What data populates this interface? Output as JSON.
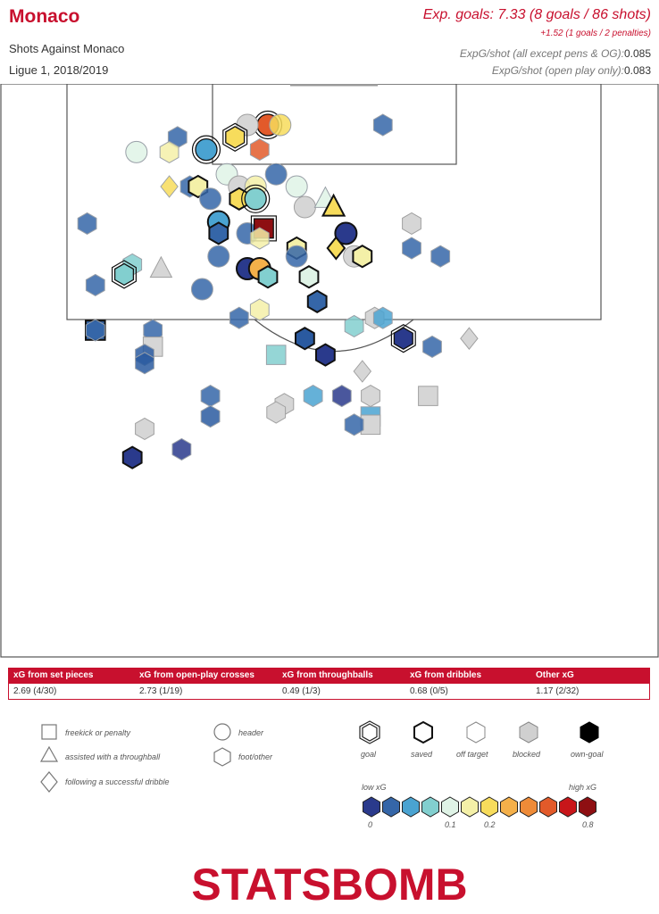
{
  "header": {
    "title": "Monaco",
    "subtitle": "Shots Against Monaco",
    "competition": "Ligue 1, 2018/2019",
    "xg_main": "Exp. goals: 7.33 (8 goals / 86 shots)",
    "xg_penalties": "+1.52 (1 goals / 2 penalties)",
    "rate1_label": "ExpG/shot (all except pens & OG):",
    "rate1_value": "0.085",
    "rate2_label": "ExpG/shot (open play only):",
    "rate2_value": "0.083"
  },
  "summary_table": {
    "columns": [
      {
        "header": "xG from set pieces",
        "value": "2.69 (4/30)"
      },
      {
        "header": "xG from open-play crosses",
        "value": "2.73 (1/19)"
      },
      {
        "header": "xG from throughballs",
        "value": "0.49 (1/3)"
      },
      {
        "header": "xG from dribbles",
        "value": "0.68 (0/5)"
      },
      {
        "header": "Other xG",
        "value": "1.17 (2/32)"
      }
    ]
  },
  "legend": {
    "shapes": [
      {
        "label": "freekick or penalty",
        "shape": "square"
      },
      {
        "label": "assisted with a throughball",
        "shape": "triangle"
      },
      {
        "label": "following a successful dribble",
        "shape": "diamond"
      },
      {
        "label": "header",
        "shape": "circle"
      },
      {
        "label": "foot/other",
        "shape": "hexagon"
      }
    ],
    "outcomes": [
      {
        "label": "goal",
        "style": "double"
      },
      {
        "label": "saved",
        "style": "thick"
      },
      {
        "label": "off target",
        "style": "thin"
      },
      {
        "label": "blocked",
        "style": "grey"
      },
      {
        "label": "own-goal",
        "style": "black"
      }
    ],
    "scale_low": "low xG",
    "scale_high": "high xG",
    "scale_ticks": [
      "0",
      "0.1",
      "0.2",
      "0.8"
    ],
    "scale_colors": [
      "#2a3a8c",
      "#3566a8",
      "#4aa3d1",
      "#82cfcf",
      "#dff3e6",
      "#f4f0a8",
      "#f7dc5c",
      "#f4b04a",
      "#ee8b38",
      "#e25a2a",
      "#c8161a",
      "#8e0f12"
    ]
  },
  "logo": {
    "text": "STATSBOMB"
  },
  "chart_data": {
    "type": "scatter",
    "x_axis": "pitch width (yards, 0-80)",
    "y_axis": "distance from goal line (yards)",
    "shots": [
      {
        "x": 32.5,
        "y": 5.0,
        "shape": "circle",
        "color": "#e25a2a",
        "outcome": "goal"
      },
      {
        "x": 30.0,
        "y": 5.0,
        "shape": "circle",
        "color": "#d6d6d6",
        "outcome": "blocked"
      },
      {
        "x": 34.0,
        "y": 5.0,
        "shape": "circle",
        "color": "#f7dc5c",
        "outcome": "off"
      },
      {
        "x": 25.0,
        "y": 8.0,
        "shape": "circle",
        "color": "#4aa3d1",
        "outcome": "goal"
      },
      {
        "x": 28.5,
        "y": 6.5,
        "shape": "hexagon",
        "color": "#f7dc5c",
        "outcome": "goal"
      },
      {
        "x": 21.5,
        "y": 6.5,
        "shape": "hexagon",
        "color": "#3566a8",
        "outcome": "off"
      },
      {
        "x": 16.5,
        "y": 8.3,
        "shape": "circle",
        "color": "#dff3e6",
        "outcome": "off"
      },
      {
        "x": 20.5,
        "y": 8.3,
        "shape": "hexagon",
        "color": "#f4f0a8",
        "outcome": "off"
      },
      {
        "x": 31.5,
        "y": 8.0,
        "shape": "hexagon",
        "color": "#e25a2a",
        "outcome": "off"
      },
      {
        "x": 46.5,
        "y": 5.0,
        "shape": "hexagon",
        "color": "#3566a8",
        "outcome": "off"
      },
      {
        "x": 33.5,
        "y": 11.0,
        "shape": "circle",
        "color": "#3566a8",
        "outcome": "off"
      },
      {
        "x": 27.5,
        "y": 11.0,
        "shape": "circle",
        "color": "#dff3e6",
        "outcome": "off"
      },
      {
        "x": 20.5,
        "y": 12.5,
        "shape": "diamond",
        "color": "#f7dc5c",
        "outcome": "off"
      },
      {
        "x": 23.0,
        "y": 12.5,
        "shape": "hexagon",
        "color": "#3566a8",
        "outcome": "off"
      },
      {
        "x": 24.0,
        "y": 12.5,
        "shape": "hexagon",
        "color": "#f4f0a8",
        "outcome": "saved"
      },
      {
        "x": 29.0,
        "y": 12.5,
        "shape": "circle",
        "color": "#d6d6d6",
        "outcome": "blocked"
      },
      {
        "x": 31.0,
        "y": 12.5,
        "shape": "circle",
        "color": "#f4f0a8",
        "outcome": "off"
      },
      {
        "x": 36.0,
        "y": 12.5,
        "shape": "circle",
        "color": "#dff3e6",
        "outcome": "off"
      },
      {
        "x": 25.5,
        "y": 14.0,
        "shape": "circle",
        "color": "#3566a8",
        "outcome": "off"
      },
      {
        "x": 29.0,
        "y": 14.0,
        "shape": "hexagon",
        "color": "#f7dc5c",
        "outcome": "saved"
      },
      {
        "x": 31.0,
        "y": 14.0,
        "shape": "circle",
        "color": "#82cfcf",
        "outcome": "goal"
      },
      {
        "x": 37.0,
        "y": 15.0,
        "shape": "circle",
        "color": "#d6d6d6",
        "outcome": "blocked"
      },
      {
        "x": 39.5,
        "y": 14.0,
        "shape": "triangle",
        "color": "#dff3e6",
        "outcome": "off"
      },
      {
        "x": 40.5,
        "y": 15.0,
        "shape": "triangle",
        "color": "#f7dc5c",
        "outcome": "saved"
      },
      {
        "x": 10.5,
        "y": 17.0,
        "shape": "hexagon",
        "color": "#3566a8",
        "outcome": "off"
      },
      {
        "x": 26.5,
        "y": 16.8,
        "shape": "circle",
        "color": "#4aa3d1",
        "outcome": "saved"
      },
      {
        "x": 26.5,
        "y": 18.2,
        "shape": "hexagon",
        "color": "#3566a8",
        "outcome": "saved"
      },
      {
        "x": 30.0,
        "y": 18.2,
        "shape": "circle",
        "color": "#3566a8",
        "outcome": "off"
      },
      {
        "x": 32.0,
        "y": 17.6,
        "shape": "square",
        "color": "#8e0f12",
        "outcome": "goal"
      },
      {
        "x": 31.5,
        "y": 18.8,
        "shape": "hexagon",
        "color": "#f4f0a8",
        "outcome": "off"
      },
      {
        "x": 42.0,
        "y": 18.2,
        "shape": "circle",
        "color": "#2a3a8c",
        "outcome": "saved"
      },
      {
        "x": 50.0,
        "y": 17.0,
        "shape": "hexagon",
        "color": "#d6d6d6",
        "outcome": "blocked"
      },
      {
        "x": 36.0,
        "y": 20.0,
        "shape": "hexagon",
        "color": "#f4f0a8",
        "outcome": "saved"
      },
      {
        "x": 40.8,
        "y": 20.0,
        "shape": "diamond",
        "color": "#f7dc5c",
        "outcome": "saved"
      },
      {
        "x": 50.0,
        "y": 20.0,
        "shape": "hexagon",
        "color": "#3566a8",
        "outcome": "off"
      },
      {
        "x": 26.5,
        "y": 21.0,
        "shape": "circle",
        "color": "#3566a8",
        "outcome": "off"
      },
      {
        "x": 36.0,
        "y": 21.0,
        "shape": "circle",
        "color": "#3566a8",
        "outcome": "off"
      },
      {
        "x": 43.0,
        "y": 21.0,
        "shape": "circle",
        "color": "#d6d6d6",
        "outcome": "blocked"
      },
      {
        "x": 44.0,
        "y": 21.0,
        "shape": "hexagon",
        "color": "#f4f0a8",
        "outcome": "saved"
      },
      {
        "x": 53.5,
        "y": 21.0,
        "shape": "hexagon",
        "color": "#3566a8",
        "outcome": "off"
      },
      {
        "x": 16.0,
        "y": 22.0,
        "shape": "hexagon",
        "color": "#82cfcf",
        "outcome": "off"
      },
      {
        "x": 15.0,
        "y": 23.2,
        "shape": "hexagon",
        "color": "#82cfcf",
        "outcome": "goal"
      },
      {
        "x": 19.5,
        "y": 22.5,
        "shape": "triangle",
        "color": "#d6d6d6",
        "outcome": "blocked"
      },
      {
        "x": 30.0,
        "y": 22.5,
        "shape": "circle",
        "color": "#2a3a8c",
        "outcome": "saved"
      },
      {
        "x": 31.5,
        "y": 22.5,
        "shape": "circle",
        "color": "#f4b04a",
        "outcome": "saved"
      },
      {
        "x": 32.5,
        "y": 23.5,
        "shape": "hexagon",
        "color": "#82cfcf",
        "outcome": "saved"
      },
      {
        "x": 37.5,
        "y": 23.5,
        "shape": "hexagon",
        "color": "#dff3e6",
        "outcome": "saved"
      },
      {
        "x": 11.5,
        "y": 24.5,
        "shape": "hexagon",
        "color": "#3566a8",
        "outcome": "off"
      },
      {
        "x": 24.5,
        "y": 25.0,
        "shape": "circle",
        "color": "#3566a8",
        "outcome": "off"
      },
      {
        "x": 38.5,
        "y": 26.5,
        "shape": "hexagon",
        "color": "#3566a8",
        "outcome": "saved"
      },
      {
        "x": 31.5,
        "y": 27.5,
        "shape": "hexagon",
        "color": "#f4f0a8",
        "outcome": "off"
      },
      {
        "x": 29.0,
        "y": 28.5,
        "shape": "hexagon",
        "color": "#3566a8",
        "outcome": "off"
      },
      {
        "x": 45.5,
        "y": 28.5,
        "shape": "hexagon",
        "color": "#d6d6d6",
        "outcome": "blocked"
      },
      {
        "x": 46.5,
        "y": 28.5,
        "shape": "hexagon",
        "color": "#4aa3d1",
        "outcome": "off"
      },
      {
        "x": 11.5,
        "y": 30.0,
        "shape": "square",
        "color": "#3566a8",
        "outcome": "saved"
      },
      {
        "x": 11.5,
        "y": 30.0,
        "shape": "hexagon",
        "color": "#3566a8",
        "outcome": "off"
      },
      {
        "x": 18.5,
        "y": 30.0,
        "shape": "hexagon",
        "color": "#3566a8",
        "outcome": "off"
      },
      {
        "x": 43.0,
        "y": 29.5,
        "shape": "hexagon",
        "color": "#82cfcf",
        "outcome": "off"
      },
      {
        "x": 37.0,
        "y": 31.0,
        "shape": "hexagon",
        "color": "#2a5aa0",
        "outcome": "saved"
      },
      {
        "x": 49.0,
        "y": 31.0,
        "shape": "hexagon",
        "color": "#2a3a8c",
        "outcome": "goal"
      },
      {
        "x": 52.5,
        "y": 32.0,
        "shape": "hexagon",
        "color": "#3566a8",
        "outcome": "off"
      },
      {
        "x": 57.0,
        "y": 31.0,
        "shape": "diamond",
        "color": "#d6d6d6",
        "outcome": "blocked"
      },
      {
        "x": 18.5,
        "y": 32.0,
        "shape": "square",
        "color": "#d6d6d6",
        "outcome": "blocked"
      },
      {
        "x": 17.5,
        "y": 33.0,
        "shape": "hexagon",
        "color": "#2a5aa0",
        "outcome": "off"
      },
      {
        "x": 17.5,
        "y": 34.0,
        "shape": "hexagon",
        "color": "#2a5aa0",
        "outcome": "off"
      },
      {
        "x": 39.5,
        "y": 33.0,
        "shape": "hexagon",
        "color": "#2a3a8c",
        "outcome": "saved"
      },
      {
        "x": 33.5,
        "y": 33.0,
        "shape": "square",
        "color": "#82cfcf",
        "outcome": "off"
      },
      {
        "x": 44.0,
        "y": 35.0,
        "shape": "diamond",
        "color": "#d6d6d6",
        "outcome": "blocked"
      },
      {
        "x": 25.5,
        "y": 38.0,
        "shape": "hexagon",
        "color": "#3566a8",
        "outcome": "off"
      },
      {
        "x": 38.0,
        "y": 38.0,
        "shape": "hexagon",
        "color": "#4aa3d1",
        "outcome": "off"
      },
      {
        "x": 41.5,
        "y": 38.0,
        "shape": "hexagon",
        "color": "#2a3a8c",
        "outcome": "off"
      },
      {
        "x": 45.0,
        "y": 38.0,
        "shape": "hexagon",
        "color": "#d6d6d6",
        "outcome": "blocked"
      },
      {
        "x": 52.0,
        "y": 38.0,
        "shape": "square",
        "color": "#d6d6d6",
        "outcome": "blocked"
      },
      {
        "x": 34.5,
        "y": 39.0,
        "shape": "hexagon",
        "color": "#d6d6d6",
        "outcome": "blocked"
      },
      {
        "x": 33.5,
        "y": 40.0,
        "shape": "hexagon",
        "color": "#d6d6d6",
        "outcome": "blocked"
      },
      {
        "x": 25.5,
        "y": 40.5,
        "shape": "hexagon",
        "color": "#2a5aa0",
        "outcome": "off"
      },
      {
        "x": 45.0,
        "y": 40.5,
        "shape": "square",
        "color": "#4aa3d1",
        "outcome": "off"
      },
      {
        "x": 45.0,
        "y": 41.5,
        "shape": "square",
        "color": "#d6d6d6",
        "outcome": "blocked"
      },
      {
        "x": 43.0,
        "y": 41.5,
        "shape": "hexagon",
        "color": "#3566a8",
        "outcome": "off"
      },
      {
        "x": 17.5,
        "y": 42.0,
        "shape": "hexagon",
        "color": "#d6d6d6",
        "outcome": "blocked"
      },
      {
        "x": 22.0,
        "y": 44.5,
        "shape": "hexagon",
        "color": "#2a3a8c",
        "outcome": "off"
      },
      {
        "x": 16.0,
        "y": 45.5,
        "shape": "hexagon",
        "color": "#2a3a8c",
        "outcome": "saved"
      }
    ]
  }
}
